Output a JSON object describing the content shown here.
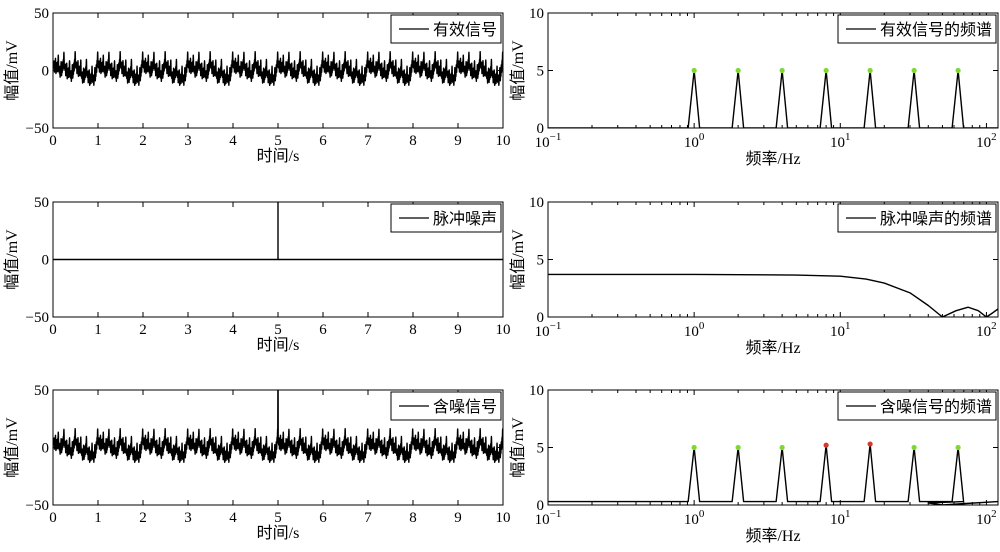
{
  "chart_data": [
    {
      "id": "time-signal",
      "type": "line",
      "legend": "有效信号",
      "legend_position": "top-right",
      "xlabel": "时间/s",
      "ylabel": "幅值/mV",
      "xlim": [
        0,
        10
      ],
      "ylim": [
        -50,
        50
      ],
      "xticks": [
        "0",
        "1",
        "2",
        "3",
        "4",
        "5",
        "6",
        "7",
        "8",
        "9",
        "10"
      ],
      "yticks": [
        "−50",
        "0",
        "50"
      ],
      "signal": {
        "components_hz": [
          1,
          2,
          4,
          8,
          16,
          32,
          64
        ],
        "amplitude_mv": 5,
        "range_mv": [
          -20,
          20
        ]
      }
    },
    {
      "id": "spectrum-signal",
      "type": "line",
      "legend": "有效信号的频谱",
      "legend_position": "top-right",
      "xlabel": "频率/Hz",
      "ylabel": "幅值/mV",
      "xscale": "log",
      "xlim": [
        0.1,
        120
      ],
      "ylim": [
        0,
        10
      ],
      "xticks": [
        "10−1",
        "100",
        "101",
        "102"
      ],
      "yticks": [
        "0",
        "5",
        "10"
      ],
      "peaks": [
        {
          "f": 1,
          "amp": 5
        },
        {
          "f": 2,
          "amp": 5
        },
        {
          "f": 4,
          "amp": 5
        },
        {
          "f": 8,
          "amp": 5
        },
        {
          "f": 16,
          "amp": 5
        },
        {
          "f": 32,
          "amp": 5
        },
        {
          "f": 64,
          "amp": 5
        }
      ],
      "marker_color": "#7fd832"
    },
    {
      "id": "time-noise",
      "type": "line",
      "legend": "脉冲噪声",
      "legend_position": "top-right",
      "xlabel": "时间/s",
      "ylabel": "幅值/mV",
      "xlim": [
        0,
        10
      ],
      "ylim": [
        -50,
        50
      ],
      "xticks": [
        "0",
        "1",
        "2",
        "3",
        "4",
        "5",
        "6",
        "7",
        "8",
        "9",
        "10"
      ],
      "yticks": [
        "−50",
        "0",
        "50"
      ],
      "impulse": {
        "t": 5,
        "amp": 50
      }
    },
    {
      "id": "spectrum-noise",
      "type": "line",
      "legend": "脉冲噪声的频谱",
      "legend_position": "top-right",
      "xlabel": "频率/Hz",
      "ylabel": "幅值/mV",
      "xscale": "log",
      "xlim": [
        0.1,
        120
      ],
      "ylim": [
        0,
        10
      ],
      "xticks": [
        "10−1",
        "100",
        "101",
        "102"
      ],
      "yticks": [
        "0",
        "5",
        "10"
      ],
      "points": [
        {
          "f": 0.1,
          "amp": 3.7
        },
        {
          "f": 1,
          "amp": 3.7
        },
        {
          "f": 5,
          "amp": 3.65
        },
        {
          "f": 10,
          "amp": 3.55
        },
        {
          "f": 15,
          "amp": 3.3
        },
        {
          "f": 20,
          "amp": 2.95
        },
        {
          "f": 30,
          "amp": 2.1
        },
        {
          "f": 40,
          "amp": 1.0
        },
        {
          "f": 50,
          "amp": 0.0
        },
        {
          "f": 62,
          "amp": 0.55
        },
        {
          "f": 75,
          "amp": 0.85
        },
        {
          "f": 88,
          "amp": 0.55
        },
        {
          "f": 100,
          "amp": 0.0
        },
        {
          "f": 110,
          "amp": 0.35
        },
        {
          "f": 120,
          "amp": 0.7
        }
      ]
    },
    {
      "id": "time-noisy",
      "type": "line",
      "legend": "含噪信号",
      "legend_position": "top-right",
      "xlabel": "时间/s",
      "ylabel": "幅值/mV",
      "xlim": [
        0,
        10
      ],
      "ylim": [
        -50,
        50
      ],
      "xticks": [
        "0",
        "1",
        "2",
        "3",
        "4",
        "5",
        "6",
        "7",
        "8",
        "9",
        "10"
      ],
      "yticks": [
        "−50",
        "0",
        "50"
      ],
      "signal": {
        "components_hz": [
          1,
          2,
          4,
          8,
          16,
          32,
          64
        ],
        "amplitude_mv": 5,
        "range_mv": [
          -20,
          20
        ]
      },
      "impulse": {
        "t": 5,
        "amp": 50
      }
    },
    {
      "id": "spectrum-noisy",
      "type": "line",
      "legend": "含噪信号的频谱",
      "legend_position": "top-right",
      "xlabel": "频率/Hz",
      "ylabel": "幅值/mV",
      "xscale": "log",
      "xlim": [
        0.1,
        120
      ],
      "ylim": [
        0,
        10
      ],
      "xticks": [
        "10−1",
        "100",
        "101",
        "102"
      ],
      "yticks": [
        "0",
        "5",
        "10"
      ],
      "baseline_amp": 0.3,
      "peaks": [
        {
          "f": 1,
          "amp": 5
        },
        {
          "f": 2,
          "amp": 5
        },
        {
          "f": 4,
          "amp": 5
        },
        {
          "f": 8,
          "amp": 5.2
        },
        {
          "f": 16,
          "amp": 5.3
        },
        {
          "f": 32,
          "amp": 5
        },
        {
          "f": 64,
          "amp": 5
        }
      ],
      "marker_color": "#7fd832",
      "marker_color_alt": "#d33a2c"
    }
  ]
}
